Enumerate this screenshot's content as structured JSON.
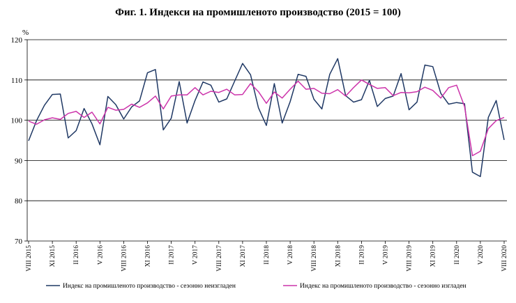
{
  "chart_data": {
    "type": "line",
    "title": "Фиг. 1. Индекси на промишленото производство (2015 = 100)",
    "ylabel": "%",
    "ylim": [
      70,
      120
    ],
    "yticks": [
      70,
      80,
      90,
      100,
      110,
      120
    ],
    "grid": true,
    "legend_position": "bottom",
    "x": [
      "VIII 2015",
      "IX 2015",
      "X 2015",
      "XI 2015",
      "XII 2015",
      "I 2016",
      "II 2016",
      "III 2016",
      "IV 2016",
      "V 2016",
      "VI 2016",
      "VII 2016",
      "VIII 2016",
      "IX 2016",
      "X 2016",
      "XI 2016",
      "XII 2016",
      "I 2017",
      "II 2017",
      "III 2017",
      "IV 2017",
      "V 2017",
      "VI 2017",
      "VII 2017",
      "VIII 2017",
      "IX 2017",
      "X 2017",
      "XI 2017",
      "XII 2017",
      "I 2018",
      "II 2018",
      "III 2018",
      "IV 2018",
      "V 2018",
      "VI 2018",
      "VII 2018",
      "VIII 2018",
      "IX 2018",
      "X 2018",
      "XI 2018",
      "XII 2018",
      "I 2019",
      "II 2019",
      "III 2019",
      "IV 2019",
      "V 2019",
      "VI 2019",
      "VII 2019",
      "VIII 2019",
      "IX 2019",
      "X 2019",
      "XI 2019",
      "XII 2019",
      "I 2020",
      "II 2020",
      "III 2020",
      "IV 2020",
      "V 2020",
      "VI 2020",
      "VII 2020",
      "VIII 2020"
    ],
    "xtick_labels": [
      {
        "index": 0,
        "label": "VIII 2015"
      },
      {
        "index": 3,
        "label": "XI 2015"
      },
      {
        "index": 6,
        "label": "II 2016"
      },
      {
        "index": 9,
        "label": "V 2016"
      },
      {
        "index": 12,
        "label": "VIII 2016"
      },
      {
        "index": 15,
        "label": "XI 2016"
      },
      {
        "index": 18,
        "label": "II 2017"
      },
      {
        "index": 21,
        "label": "V 2017"
      },
      {
        "index": 24,
        "label": "VIII 2017"
      },
      {
        "index": 27,
        "label": "XI 2017"
      },
      {
        "index": 30,
        "label": "II 2018"
      },
      {
        "index": 33,
        "label": "V 2018"
      },
      {
        "index": 36,
        "label": "VIII 2018"
      },
      {
        "index": 39,
        "label": "XI 2018"
      },
      {
        "index": 42,
        "label": "II 2019"
      },
      {
        "index": 45,
        "label": "V 2019"
      },
      {
        "index": 48,
        "label": "VIII 2019"
      },
      {
        "index": 51,
        "label": "XI 2019"
      },
      {
        "index": 54,
        "label": "II 2020"
      },
      {
        "index": 57,
        "label": "V 2020"
      },
      {
        "index": 60,
        "label": "VIII 2020"
      }
    ],
    "series": [
      {
        "name": "Индекс  на промишленото производство  - сезонно  неизгладен",
        "color": "#1f3864",
        "values": [
          94.9,
          99.9,
          103.7,
          106.4,
          106.5,
          95.6,
          97.4,
          102.9,
          99.1,
          93.9,
          105.9,
          103.9,
          100.3,
          103.3,
          104.8,
          111.8,
          112.6,
          97.6,
          100.5,
          109.6,
          99.3,
          104.9,
          109.5,
          108.7,
          104.5,
          105.3,
          109.7,
          114.1,
          111.3,
          103.1,
          98.7,
          109.1,
          99.3,
          104.6,
          111.4,
          110.9,
          105.2,
          102.8,
          111.4,
          115.3,
          106.1,
          104.5,
          105.1,
          109.9,
          103.4,
          105.4,
          106.0,
          111.6,
          102.6,
          104.5,
          113.7,
          113.3,
          106.7,
          104.0,
          104.4,
          104.1,
          87.1,
          86.0,
          100.7,
          104.9,
          95.1
        ]
      },
      {
        "name": "Индекс  на промишленото производство  - сезонно  изгладен",
        "color": "#cc33aa",
        "values": [
          99.8,
          99.0,
          100.1,
          100.6,
          100.2,
          101.7,
          102.2,
          100.7,
          102.0,
          99.1,
          103.2,
          102.5,
          102.7,
          104.0,
          103.2,
          104.3,
          106.0,
          102.8,
          106.0,
          106.3,
          106.3,
          108.1,
          106.3,
          107.2,
          106.9,
          107.7,
          106.3,
          106.4,
          109.1,
          107.1,
          104.2,
          107.0,
          105.5,
          107.7,
          109.7,
          107.7,
          107.9,
          106.7,
          106.6,
          107.6,
          106.0,
          108.1,
          110.0,
          108.9,
          107.9,
          108.1,
          106.1,
          106.9,
          106.8,
          107.1,
          108.2,
          107.4,
          105.5,
          108.1,
          108.7,
          103.4,
          91.2,
          92.3,
          97.9,
          99.9,
          100.7
        ]
      }
    ]
  }
}
